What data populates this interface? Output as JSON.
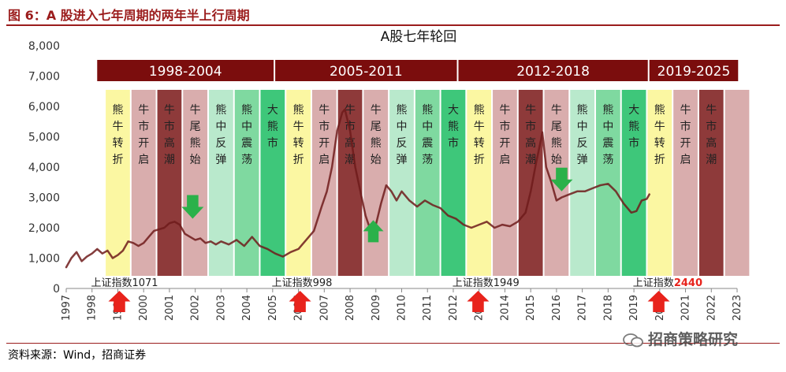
{
  "figure_title": "图 6：A 股进入七年周期的两年半上行周期",
  "source": "资料来源：Wind，招商证券",
  "watermark": "招商策略研究",
  "colors": {
    "title_red": "#9b1c1c",
    "header_bar": "#7b0d0d",
    "line": "#6e1b1b",
    "arrow_up": "#e8231c",
    "arrow_down": "#2bb14a",
    "phase_yellow": "#fbf7a2",
    "phase_pink": "#d9adad",
    "phase_maroon": "#8e3a3a",
    "phase_mint": "#b9e9cc",
    "phase_green": "#7fd9a0",
    "phase_deep_green": "#3ec77a"
  },
  "chart_data": {
    "type": "line",
    "title": "A股七年轮回",
    "xlabel": "",
    "ylabel": "",
    "ylim": [
      0,
      8000
    ],
    "y_ticks": [
      "0",
      "1,000",
      "2,000",
      "3,000",
      "4,000",
      "5,000",
      "6,000",
      "7,000",
      "8,000"
    ],
    "x_ticks": [
      "1997",
      "1998",
      "1999",
      "2000",
      "2001",
      "2002",
      "2003",
      "2004",
      "2005",
      "2006",
      "2007",
      "2008",
      "2009",
      "2010",
      "2011",
      "2012",
      "2013",
      "2014",
      "2015",
      "2016",
      "2017",
      "2018",
      "2019",
      "2020",
      "2021",
      "2022",
      "2023"
    ],
    "grid": false,
    "cycles": [
      {
        "label": "1998-2004",
        "start": 1998.2,
        "end": 2005.1
      },
      {
        "label": "2005-2011",
        "start": 2005.1,
        "end": 2012.2
      },
      {
        "label": "2012-2018",
        "start": 2012.2,
        "end": 2019.6
      },
      {
        "label": "2019-2025",
        "start": 2019.6,
        "end": 2023.1
      }
    ],
    "phases": [
      {
        "label": "熊牛转折",
        "start": 1998.5,
        "end": 1999.5,
        "style": "yellow"
      },
      {
        "label": "牛市开启",
        "start": 1999.5,
        "end": 2000.5,
        "style": "pink"
      },
      {
        "label": "牛市高潮",
        "start": 2000.5,
        "end": 2001.5,
        "style": "maroon"
      },
      {
        "label": "牛尾熊始",
        "start": 2001.5,
        "end": 2002.5,
        "style": "pink"
      },
      {
        "label": "熊中反弹",
        "start": 2002.5,
        "end": 2003.5,
        "style": "mint"
      },
      {
        "label": "熊中震荡",
        "start": 2003.5,
        "end": 2004.5,
        "style": "green"
      },
      {
        "label": "大熊市",
        "start": 2004.5,
        "end": 2005.5,
        "style": "deep_green"
      },
      {
        "label": "熊牛转折",
        "start": 2005.5,
        "end": 2006.5,
        "style": "yellow"
      },
      {
        "label": "牛市开启",
        "start": 2006.5,
        "end": 2007.5,
        "style": "pink"
      },
      {
        "label": "牛市高潮",
        "start": 2007.5,
        "end": 2008.5,
        "style": "maroon"
      },
      {
        "label": "牛尾熊始",
        "start": 2008.5,
        "end": 2009.5,
        "style": "pink"
      },
      {
        "label": "熊中反弹",
        "start": 2009.5,
        "end": 2010.5,
        "style": "mint"
      },
      {
        "label": "熊中震荡",
        "start": 2010.5,
        "end": 2011.5,
        "style": "green"
      },
      {
        "label": "大熊市",
        "start": 2011.5,
        "end": 2012.5,
        "style": "deep_green"
      },
      {
        "label": "熊牛转折",
        "start": 2012.5,
        "end": 2013.5,
        "style": "yellow"
      },
      {
        "label": "牛市开启",
        "start": 2013.5,
        "end": 2014.5,
        "style": "pink"
      },
      {
        "label": "牛市高潮",
        "start": 2014.5,
        "end": 2015.5,
        "style": "maroon"
      },
      {
        "label": "牛尾熊始",
        "start": 2015.5,
        "end": 2016.5,
        "style": "pink"
      },
      {
        "label": "熊中反弹",
        "start": 2016.5,
        "end": 2017.5,
        "style": "mint"
      },
      {
        "label": "熊中震荡",
        "start": 2017.5,
        "end": 2018.5,
        "style": "green"
      },
      {
        "label": "大熊市",
        "start": 2018.5,
        "end": 2019.5,
        "style": "deep_green"
      },
      {
        "label": "熊牛转折",
        "start": 2019.5,
        "end": 2020.5,
        "style": "yellow"
      },
      {
        "label": "牛市开启",
        "start": 2020.5,
        "end": 2021.5,
        "style": "pink"
      },
      {
        "label": "牛市高潮",
        "start": 2021.5,
        "end": 2022.5,
        "style": "maroon"
      },
      {
        "label": "",
        "start": 2022.5,
        "end": 2023.5,
        "style": "pink"
      }
    ],
    "annotations": [
      {
        "prefix": "上证指数",
        "value": "1071",
        "x": 1999.0,
        "highlight": false
      },
      {
        "prefix": "上证指数",
        "value": "998",
        "x": 2006.0,
        "highlight": false
      },
      {
        "prefix": "上证指数",
        "value": "1949",
        "x": 2013.0,
        "highlight": false
      },
      {
        "prefix": "上证指数",
        "value": "2440",
        "x": 2020.0,
        "highlight": true
      }
    ],
    "up_arrows": [
      1999.0,
      2006.0,
      2012.9,
      2019.9
    ],
    "down_arrows": [
      {
        "x": 2001.9,
        "y": 2300
      },
      {
        "x": 2016.2,
        "y": 3200
      }
    ],
    "side_up_arrows": [
      {
        "x": 2008.9,
        "y": 2250
      }
    ],
    "series": [
      {
        "x": [
          1997.0,
          1997.2,
          1997.4,
          1997.6,
          1997.8,
          1998.0,
          1998.2,
          1998.4,
          1998.6,
          1998.8,
          1999.0,
          1999.2,
          1999.4,
          1999.6,
          1999.8,
          2000.0,
          2000.2,
          2000.4,
          2000.6,
          2000.8,
          2001.0,
          2001.2,
          2001.4,
          2001.6,
          2001.8,
          2002.0,
          2002.2,
          2002.4,
          2002.6,
          2002.8,
          2003.0,
          2003.3,
          2003.6,
          2003.9,
          2004.2,
          2004.5,
          2004.8,
          2005.1,
          2005.4,
          2005.7,
          2006.0,
          2006.3,
          2006.6,
          2006.9,
          2007.1,
          2007.3,
          2007.5,
          2007.7,
          2007.8,
          2008.0,
          2008.2,
          2008.4,
          2008.6,
          2008.8,
          2009.0,
          2009.2,
          2009.4,
          2009.6,
          2009.8,
          2010.0,
          2010.3,
          2010.6,
          2010.9,
          2011.2,
          2011.5,
          2011.8,
          2012.1,
          2012.4,
          2012.7,
          2013.0,
          2013.3,
          2013.6,
          2013.9,
          2014.2,
          2014.5,
          2014.8,
          2015.0,
          2015.2,
          2015.4,
          2015.45,
          2015.6,
          2015.8,
          2016.0,
          2016.2,
          2016.5,
          2016.8,
          2017.1,
          2017.4,
          2017.7,
          2018.0,
          2018.3,
          2018.6,
          2018.9,
          2019.1,
          2019.3,
          2019.5,
          2019.6
        ],
        "y": [
          700,
          1000,
          1200,
          900,
          1050,
          1150,
          1300,
          1150,
          1250,
          1000,
          1100,
          1250,
          1550,
          1500,
          1400,
          1500,
          1700,
          1900,
          1950,
          2000,
          2150,
          2200,
          2100,
          1800,
          1700,
          1600,
          1650,
          1500,
          1550,
          1450,
          1550,
          1450,
          1600,
          1400,
          1700,
          1400,
          1300,
          1150,
          1050,
          1200,
          1300,
          1600,
          1900,
          2700,
          3200,
          4000,
          5200,
          5800,
          5900,
          5200,
          4000,
          3200,
          2400,
          1900,
          2100,
          2800,
          3400,
          3200,
          2900,
          3200,
          2900,
          2700,
          2900,
          2750,
          2650,
          2400,
          2300,
          2100,
          2000,
          2100,
          2200,
          2000,
          2100,
          2050,
          2200,
          2500,
          3200,
          4100,
          4900,
          5150,
          4000,
          3500,
          2900,
          3000,
          3100,
          3200,
          3200,
          3300,
          3400,
          3450,
          3200,
          2800,
          2500,
          2550,
          2900,
          2950,
          3100
        ]
      }
    ]
  }
}
